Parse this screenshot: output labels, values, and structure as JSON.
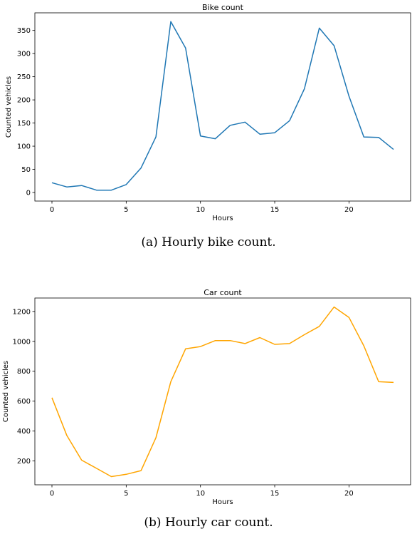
{
  "chart_data": [
    {
      "type": "line",
      "title": "Bike count",
      "xlabel": "Hours",
      "ylabel": "Counted vehicles",
      "xlim": [
        -1.15,
        24.15
      ],
      "ylim": [
        -18.5,
        388
      ],
      "xticks": [
        0,
        5,
        10,
        15,
        20
      ],
      "yticks": [
        0,
        50,
        100,
        150,
        200,
        250,
        300,
        350
      ],
      "color": "#1f77b4",
      "grid": false,
      "x": [
        0,
        1,
        2,
        3,
        4,
        5,
        6,
        7,
        8,
        9,
        10,
        11,
        12,
        13,
        14,
        15,
        16,
        17,
        18,
        19,
        20,
        21,
        22,
        23
      ],
      "values": [
        21,
        12,
        15,
        5,
        5,
        17,
        53,
        120,
        369,
        312,
        122,
        116,
        145,
        152,
        126,
        129,
        155,
        224,
        355,
        317,
        208,
        120,
        119,
        93
      ]
    },
    {
      "type": "line",
      "title": "Car count",
      "xlabel": "Hours",
      "ylabel": "Counted vehicles",
      "xlim": [
        -1.15,
        24.15
      ],
      "ylim": [
        40,
        1290
      ],
      "xticks": [
        0,
        5,
        10,
        15,
        20
      ],
      "yticks": [
        200,
        400,
        600,
        800,
        1000,
        1200
      ],
      "color": "#ffa500",
      "grid": false,
      "x": [
        0,
        1,
        2,
        3,
        4,
        5,
        6,
        7,
        8,
        9,
        10,
        11,
        12,
        13,
        14,
        15,
        16,
        17,
        18,
        19,
        20,
        21,
        22,
        23
      ],
      "values": [
        623,
        370,
        205,
        150,
        95,
        110,
        135,
        355,
        730,
        950,
        965,
        1005,
        1005,
        985,
        1025,
        980,
        985,
        1045,
        1100,
        1230,
        1160,
        970,
        730,
        725
      ]
    }
  ],
  "captions": {
    "a": "(a) Hourly bike count.",
    "b": "(b) Hourly car count."
  }
}
